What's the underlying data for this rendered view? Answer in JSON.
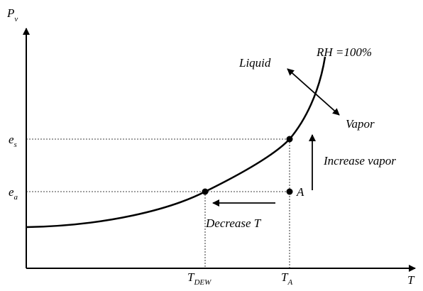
{
  "axes": {
    "y_label": {
      "main": "P",
      "sub": "v"
    },
    "x_label": "T"
  },
  "levels": [
    {
      "main": "e",
      "sub": "s"
    },
    {
      "main": "e",
      "sub": "a"
    }
  ],
  "temperatures": [
    {
      "main": "T",
      "sub": "DEW"
    },
    {
      "main": "T",
      "sub": "A"
    }
  ],
  "curve_label": "RH =100%",
  "regions": [
    "Liquid",
    "Vapor"
  ],
  "point_label": "A",
  "arrows": [
    "Increase vapor",
    "Decrease T"
  ]
}
